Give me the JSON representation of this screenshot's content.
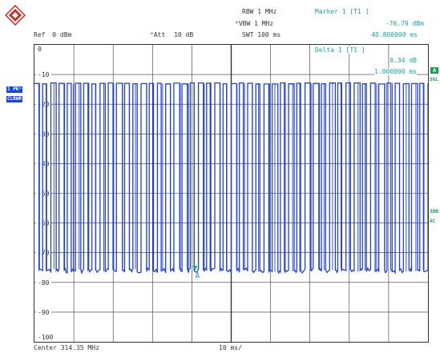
{
  "header": {
    "ref_label": "Ref",
    "ref_value": "0 dBm",
    "att_label": "Att",
    "att_value": "10 dB",
    "rbw": "RBW 1 MHz",
    "vbw": "VBW 1 MHz",
    "swt": "SWT 100 ms",
    "star": "*"
  },
  "marker": {
    "title": "Marker 1 [T1 ]",
    "level": "-76.79 dBm",
    "time": "40.800000 ms"
  },
  "delta": {
    "title": "Delta 1 [T1 ]",
    "level": "0.34 dB",
    "time": "1.000000 ms"
  },
  "left_tags": {
    "trace": "1 PK",
    "trace_star": "*",
    "mode": "CLRWR"
  },
  "right_tags": {
    "a": "A",
    "sgl": "SGL",
    "dbm3": "3DB",
    "ac": "AC"
  },
  "y_axis": {
    "ticks": [
      "0",
      "-10",
      "-20",
      "-30",
      "-40",
      "-50",
      "-60",
      "-70",
      "-80",
      "-90",
      "-100"
    ]
  },
  "footer": {
    "center": "Center 314.35 MHz",
    "span": "10 ms/"
  },
  "colors": {
    "trace": "#1f3fe0",
    "marker_text": "#1aa3a3",
    "grid": "#333333"
  },
  "chart_data": {
    "type": "line",
    "series": [
      {
        "values": {
          "high_dbm": -13,
          "low_dbm": -76
        }
      }
    ],
    "ylim": [
      -100,
      0
    ],
    "x_divisions": 10,
    "y_divisions": 10,
    "grid": true,
    "pulse_count": 48
  }
}
